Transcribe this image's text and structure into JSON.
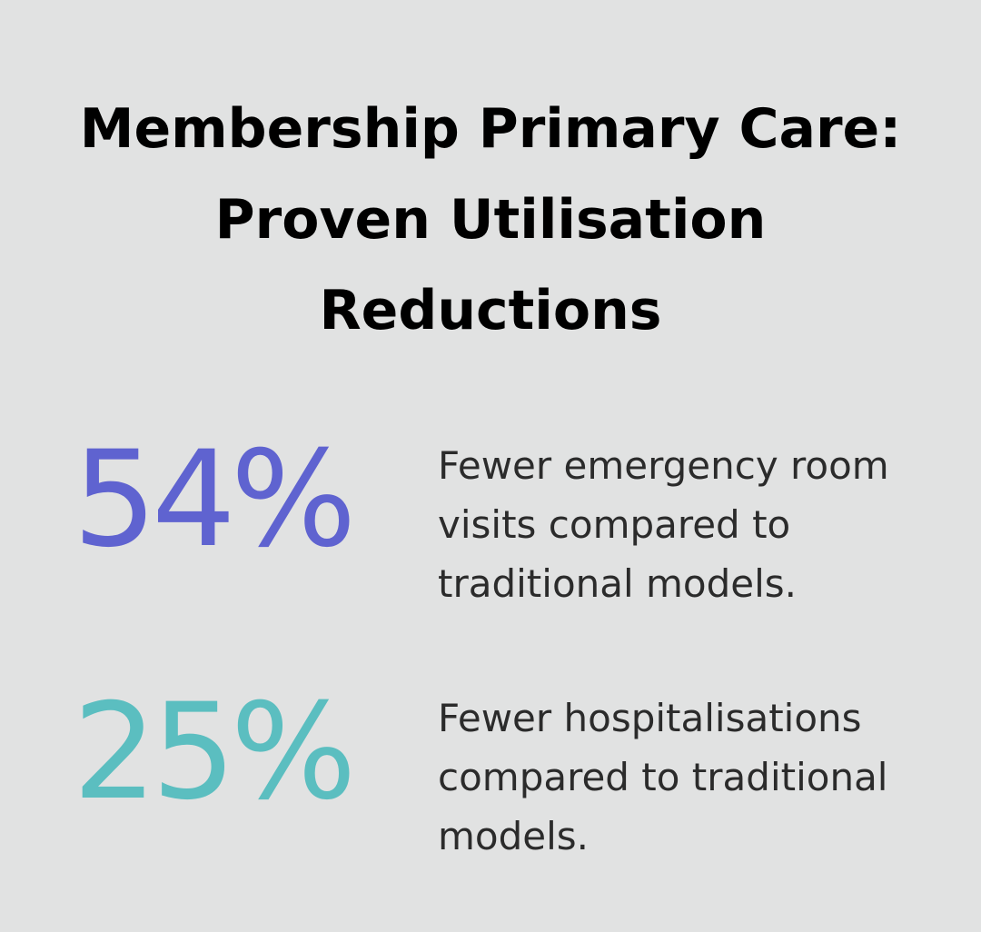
{
  "header": {
    "title": "Membership Primary Care: Proven Utilisation Reductions"
  },
  "stats": [
    {
      "figure": "54%",
      "description": "Fewer emergency room visits compared to traditional models."
    },
    {
      "figure": "25%",
      "description": "Fewer hospitalisations compared to traditional models."
    }
  ]
}
